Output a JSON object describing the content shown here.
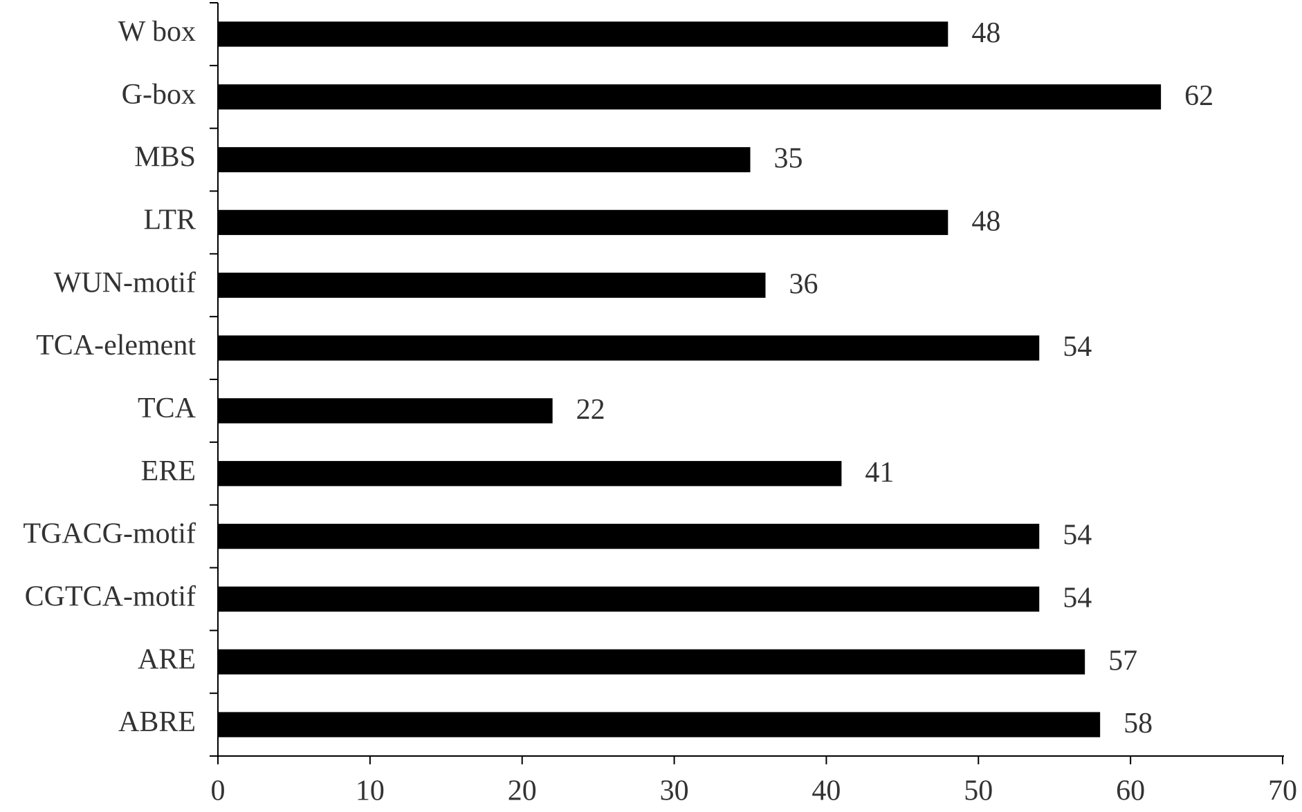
{
  "chart_data": {
    "type": "bar",
    "orientation": "horizontal",
    "categories": [
      "W box",
      "G-box",
      "MBS",
      "LTR",
      "WUN-motif",
      "TCA-element",
      "TCA",
      "ERE",
      "TGACG-motif",
      "CGTCA-motif",
      "ARE",
      "ABRE"
    ],
    "values": [
      48,
      62,
      35,
      48,
      36,
      54,
      22,
      41,
      54,
      54,
      57,
      58
    ],
    "color": "#000000",
    "xlim": [
      0,
      70
    ],
    "xticks": [
      0,
      10,
      20,
      30,
      40,
      50,
      60,
      70
    ],
    "grid": false
  }
}
